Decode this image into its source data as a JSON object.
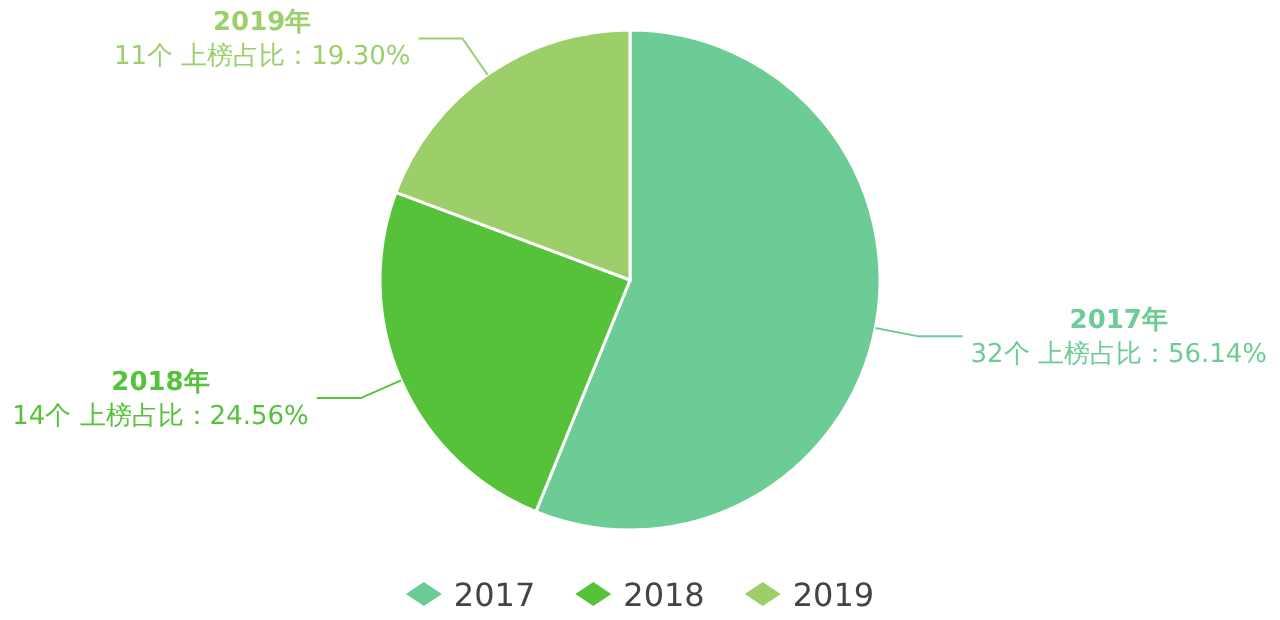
{
  "chart_data": {
    "type": "pie",
    "categories": [
      "2017",
      "2018",
      "2019"
    ],
    "values": [
      56.14,
      24.56,
      19.3
    ],
    "colors": [
      "#6dcc96",
      "#55c23a",
      "#9ccf6a"
    ],
    "value_labels": [
      "2017年\n32个  上榜占比：56.14%",
      "2018年\n14个  上榜占比：24.56%",
      "2019年\n11个  上榜占比：19.30%"
    ],
    "legend": "bottom"
  }
}
